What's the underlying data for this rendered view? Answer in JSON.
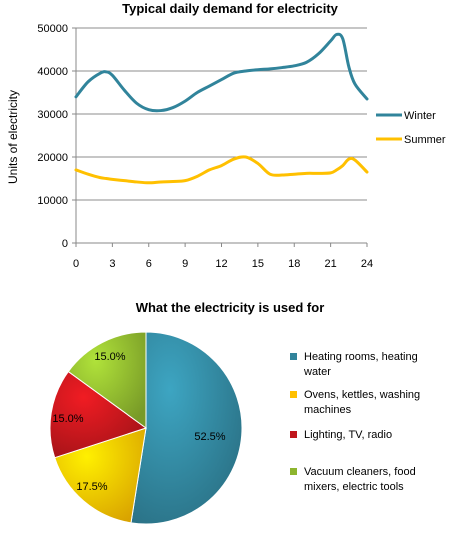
{
  "chart_data": [
    {
      "type": "line",
      "title": "Typical daily demand for electricity",
      "xlabel": "",
      "ylabel": "Units of electricity",
      "xlim": [
        0,
        24
      ],
      "ylim": [
        0,
        50000
      ],
      "x_ticks": [
        "0",
        "3",
        "6",
        "9",
        "12",
        "15",
        "18",
        "21",
        "24"
      ],
      "y_ticks": [
        "0",
        "10000",
        "20000",
        "30000",
        "40000",
        "50000"
      ],
      "grid": true,
      "legend": "right",
      "x": [
        0,
        1,
        2,
        2.5,
        3,
        4,
        5,
        6,
        7,
        8,
        9,
        10,
        11,
        12,
        13,
        14,
        15,
        16,
        17,
        18,
        19,
        20,
        21,
        21.5,
        22,
        22.5,
        23,
        24
      ],
      "series": [
        {
          "name": "Winter",
          "color": "#31849b",
          "values": [
            34000,
            37500,
            39500,
            39800,
            39000,
            35500,
            32500,
            31000,
            30800,
            31500,
            33000,
            35000,
            36500,
            38000,
            39500,
            40000,
            40300,
            40500,
            40800,
            41200,
            42000,
            44000,
            47000,
            48500,
            47500,
            41000,
            37000,
            33500
          ]
        },
        {
          "name": "Summer",
          "color": "#ffc000",
          "values": [
            17000,
            16000,
            15200,
            15000,
            14800,
            14500,
            14200,
            14000,
            14200,
            14300,
            14500,
            15500,
            17000,
            18000,
            19500,
            20000,
            18500,
            16000,
            15800,
            16000,
            16200,
            16200,
            16300,
            17000,
            18000,
            19500,
            19300,
            16500
          ]
        }
      ]
    },
    {
      "type": "pie",
      "title": "What the electricity is used for",
      "legend": "right",
      "slices": [
        {
          "label": "Heating rooms, heating water",
          "value": 52.5,
          "display": "52.5%",
          "color": "#31849b"
        },
        {
          "label": "Ovens, kettles, washing machines",
          "value": 17.5,
          "display": "17.5%",
          "color": "#ffc000"
        },
        {
          "label": "Lighting, TV, radio",
          "value": 15.0,
          "display": "15.0%",
          "color": "#c0161c"
        },
        {
          "label": "Vacuum cleaners, food mixers, electric tools",
          "value": 15.0,
          "display": "15.0%",
          "color": "#8db52e"
        }
      ]
    }
  ]
}
